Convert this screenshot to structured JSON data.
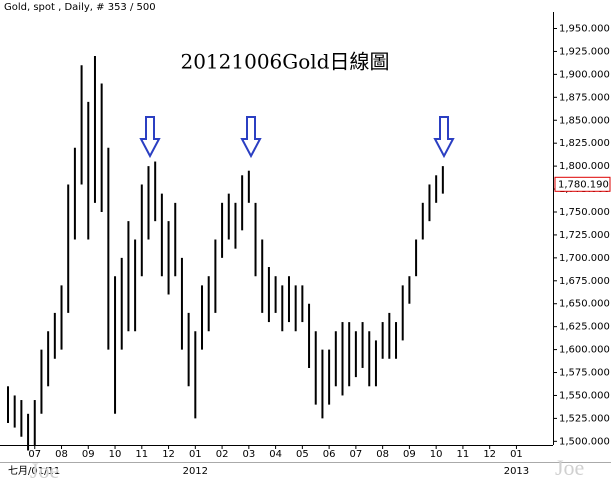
{
  "header": "Gold, spot , Daily, # 353 / 500",
  "chart_data": {
    "type": "range_bar",
    "title": "20121006Gold日線圖",
    "color": "#000000",
    "categories": [
      null,
      null,
      null,
      null,
      null,
      null,
      null,
      null,
      null,
      null,
      null,
      null,
      null,
      null,
      null,
      null,
      null,
      null,
      null,
      null,
      null,
      null,
      null,
      null,
      null,
      null,
      null,
      null,
      null,
      null,
      null,
      null,
      null,
      null,
      null,
      null,
      null,
      null,
      null,
      null,
      null,
      null,
      null,
      null,
      null,
      null,
      null,
      null,
      null,
      null,
      null,
      null,
      null,
      null,
      null,
      null,
      null,
      null,
      null,
      null,
      null,
      null,
      null,
      null,
      null,
      null,
      null,
      null,
      null,
      null,
      null,
      null,
      null,
      null,
      null,
      null,
      null,
      null,
      null,
      null,
      null,
      null
    ],
    "high": [
      1560,
      1550,
      1545,
      1530,
      1545,
      1600,
      1620,
      1640,
      1670,
      1780,
      1820,
      1910,
      1870,
      1920,
      1890,
      1820,
      1680,
      1700,
      1740,
      1720,
      1780,
      1800,
      1805,
      1770,
      1740,
      1760,
      1700,
      1640,
      1620,
      1670,
      1680,
      1720,
      1760,
      1770,
      1760,
      1790,
      1795,
      1760,
      1720,
      1690,
      1680,
      1670,
      1680,
      1670,
      1670,
      1650,
      1620,
      1600,
      1600,
      1620,
      1630,
      1630,
      1620,
      1630,
      1620,
      1610,
      1630,
      1640,
      1630,
      1670,
      1680,
      1720,
      1760,
      1780,
      1790,
      1800,
      null,
      null,
      null,
      null,
      null,
      null,
      null,
      null,
      null,
      null,
      null,
      null,
      null,
      null,
      null,
      null
    ],
    "low": [
      1520,
      1515,
      1505,
      1490,
      1495,
      1530,
      1560,
      1590,
      1600,
      1640,
      1720,
      1780,
      1720,
      1760,
      1750,
      1600,
      1530,
      1600,
      1620,
      1620,
      1680,
      1720,
      1740,
      1680,
      1660,
      1680,
      1600,
      1560,
      1525,
      1600,
      1620,
      1640,
      1700,
      1720,
      1710,
      1730,
      1760,
      1680,
      1640,
      1630,
      1640,
      1620,
      1630,
      1620,
      1630,
      1580,
      1540,
      1525,
      1540,
      1560,
      1550,
      1560,
      1570,
      1580,
      1560,
      1560,
      1590,
      1590,
      1590,
      1610,
      1650,
      1680,
      1720,
      1740,
      1760,
      1770,
      null,
      null,
      null,
      null,
      null,
      null,
      null,
      null,
      null,
      null,
      null,
      null,
      null,
      null,
      null,
      null
    ],
    "last_price": {
      "value": 1780.19,
      "label": "1,780.190"
    },
    "ylim": [
      1496,
      1968
    ],
    "yticks": [
      {
        "value": 1500,
        "label": "1,500.000"
      },
      {
        "value": 1525,
        "label": "1,525.000"
      },
      {
        "value": 1550,
        "label": "1,550.000"
      },
      {
        "value": 1575,
        "label": "1,575.000"
      },
      {
        "value": 1600,
        "label": "1,600.000"
      },
      {
        "value": 1625,
        "label": "1,625.000"
      },
      {
        "value": 1650,
        "label": "1,650.000"
      },
      {
        "value": 1675,
        "label": "1,675.000"
      },
      {
        "value": 1700,
        "label": "1,700.000"
      },
      {
        "value": 1725,
        "label": "1,725.000"
      },
      {
        "value": 1750,
        "label": "1,750.000"
      },
      {
        "value": 1775,
        "label": "1,775.000"
      },
      {
        "value": 1800,
        "label": "1,800.000"
      },
      {
        "value": 1825,
        "label": "1,825.000"
      },
      {
        "value": 1850,
        "label": "1,850.000"
      },
      {
        "value": 1875,
        "label": "1,875.000"
      },
      {
        "value": 1900,
        "label": "1,900.000"
      },
      {
        "value": 1925,
        "label": "1,925.000"
      },
      {
        "value": 1950,
        "label": "1,950.000"
      }
    ],
    "xticks": [
      {
        "value": 4,
        "label": "07"
      },
      {
        "value": 8,
        "label": "08"
      },
      {
        "value": 12,
        "label": "09"
      },
      {
        "value": 16,
        "label": "10"
      },
      {
        "value": 20,
        "label": "11"
      },
      {
        "value": 24,
        "label": "12"
      },
      {
        "value": 28,
        "label": "01"
      },
      {
        "value": 32,
        "label": "02"
      },
      {
        "value": 36,
        "label": "03"
      },
      {
        "value": 40,
        "label": "04"
      },
      {
        "value": 44,
        "label": "05"
      },
      {
        "value": 48,
        "label": "06"
      },
      {
        "value": 52,
        "label": "07"
      },
      {
        "value": 56,
        "label": "08"
      },
      {
        "value": 60,
        "label": "09"
      },
      {
        "value": 64,
        "label": "10"
      },
      {
        "value": 68,
        "label": "11"
      },
      {
        "value": 72,
        "label": "12"
      },
      {
        "value": 76,
        "label": "01"
      }
    ],
    "period_labels": [
      {
        "value": 0,
        "label": "七月/01/11"
      },
      {
        "value": 28,
        "label": "2012"
      },
      {
        "value": 76,
        "label": "2013"
      }
    ],
    "watermark": "Joe"
  }
}
